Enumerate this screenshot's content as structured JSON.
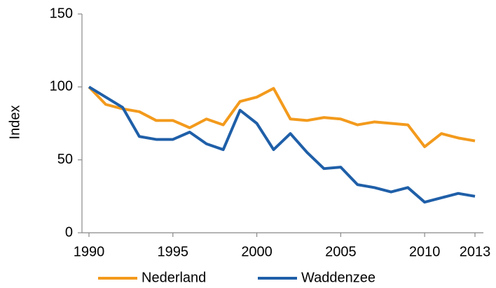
{
  "chart_data": {
    "type": "line",
    "y_label": "Index",
    "x": [
      1990,
      1991,
      1992,
      1993,
      1994,
      1995,
      1996,
      1997,
      1998,
      1999,
      2000,
      2001,
      2002,
      2003,
      2004,
      2005,
      2006,
      2007,
      2008,
      2009,
      2010,
      2011,
      2012,
      2013
    ],
    "series": [
      {
        "name": "Nederland",
        "color": "#f39a1c",
        "values": [
          100,
          88,
          85,
          83,
          77,
          77,
          72,
          78,
          74,
          90,
          93,
          99,
          78,
          77,
          79,
          78,
          74,
          76,
          75,
          74,
          59,
          68,
          65,
          63
        ]
      },
      {
        "name": "Waddenzee",
        "color": "#1f5fa8",
        "values": [
          100,
          93,
          86,
          66,
          64,
          64,
          69,
          61,
          57,
          84,
          75,
          57,
          68,
          55,
          44,
          45,
          33,
          31,
          28,
          31,
          21,
          24,
          27,
          25
        ]
      }
    ],
    "xlim": [
      1990,
      2013
    ],
    "xticks": [
      1990,
      1995,
      2000,
      2005,
      2010,
      2013
    ],
    "ylim": [
      0,
      150
    ],
    "yticks": [
      0,
      50,
      100,
      150
    ],
    "grid": false,
    "legend": "bottom"
  }
}
